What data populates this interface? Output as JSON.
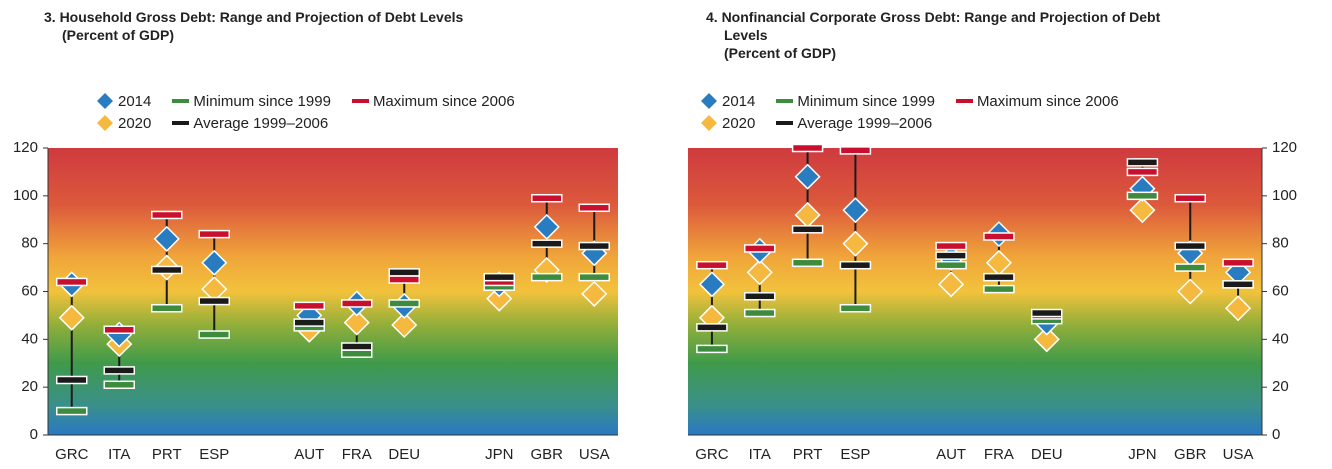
{
  "chart_data": [
    {
      "type": "range",
      "title": "3. Household Gross Debt: Range and Projection of Debt Levels",
      "subtitle": "(Percent of GDP)",
      "categories": [
        "GRC",
        "ITA",
        "PRT",
        "ESP",
        null,
        "AUT",
        "FRA",
        "DEU",
        null,
        "JPN",
        "GBR",
        "USA"
      ],
      "series": [
        {
          "name": "2014",
          "color": "#2a7cc0",
          "marker": "diamond",
          "values": [
            63,
            42,
            82,
            72,
            null,
            50,
            55,
            54,
            null,
            63,
            87,
            76
          ]
        },
        {
          "name": "2020",
          "color": "#f6b940",
          "marker": "diamond",
          "values": [
            49,
            38,
            70,
            61,
            null,
            44,
            47,
            46,
            null,
            57,
            69,
            59
          ]
        },
        {
          "name": "Minimum since 1999",
          "color": "#3d8b3d",
          "marker": "dash",
          "values": [
            10,
            21,
            53,
            42,
            null,
            45,
            34,
            55,
            null,
            62,
            66,
            66
          ]
        },
        {
          "name": "Maximum since 2006",
          "color": "#c8102e",
          "marker": "dash",
          "values": [
            64,
            44,
            92,
            84,
            null,
            54,
            55,
            65,
            null,
            64,
            99,
            95
          ]
        },
        {
          "name": "Average 1999–2006",
          "color": "#1a1a1a",
          "marker": "dash",
          "values": [
            23,
            27,
            69,
            56,
            null,
            47,
            37,
            68,
            null,
            66,
            80,
            79
          ]
        }
      ],
      "ylim": [
        0,
        120
      ],
      "yticks": [
        0,
        20,
        40,
        60,
        80,
        100,
        120
      ],
      "yaxis_side": "left"
    },
    {
      "type": "range",
      "title": "4. Nonfinancial Corporate Gross Debt: Range and Projection of Debt Levels",
      "subtitle": "(Percent of GDP)",
      "categories": [
        "GRC",
        "ITA",
        "PRT",
        "ESP",
        null,
        "AUT",
        "FRA",
        "DEU",
        null,
        "JPN",
        "GBR",
        "USA"
      ],
      "series": [
        {
          "name": "2014",
          "color": "#2a7cc0",
          "marker": "diamond",
          "values": [
            63,
            77,
            108,
            94,
            null,
            74,
            84,
            47,
            null,
            103,
            76,
            68
          ]
        },
        {
          "name": "2020",
          "color": "#f6b940",
          "marker": "diamond",
          "values": [
            49,
            68,
            92,
            80,
            null,
            63,
            72,
            40,
            null,
            94,
            60,
            53
          ]
        },
        {
          "name": "Minimum since 1999",
          "color": "#3d8b3d",
          "marker": "dash",
          "values": [
            36,
            51,
            72,
            53,
            null,
            71,
            61,
            48,
            null,
            100,
            70,
            63
          ]
        },
        {
          "name": "Maximum since 2006",
          "color": "#c8102e",
          "marker": "dash",
          "values": [
            71,
            78,
            120,
            119,
            null,
            79,
            83,
            50,
            null,
            110,
            99,
            72
          ]
        },
        {
          "name": "Average 1999–2006",
          "color": "#1a1a1a",
          "marker": "dash",
          "values": [
            45,
            58,
            86,
            71,
            null,
            75,
            66,
            51,
            null,
            114,
            79,
            63
          ]
        }
      ],
      "ylim": [
        0,
        120
      ],
      "yticks": [
        0,
        20,
        40,
        60,
        80,
        100,
        120
      ],
      "yaxis_side": "right"
    }
  ]
}
